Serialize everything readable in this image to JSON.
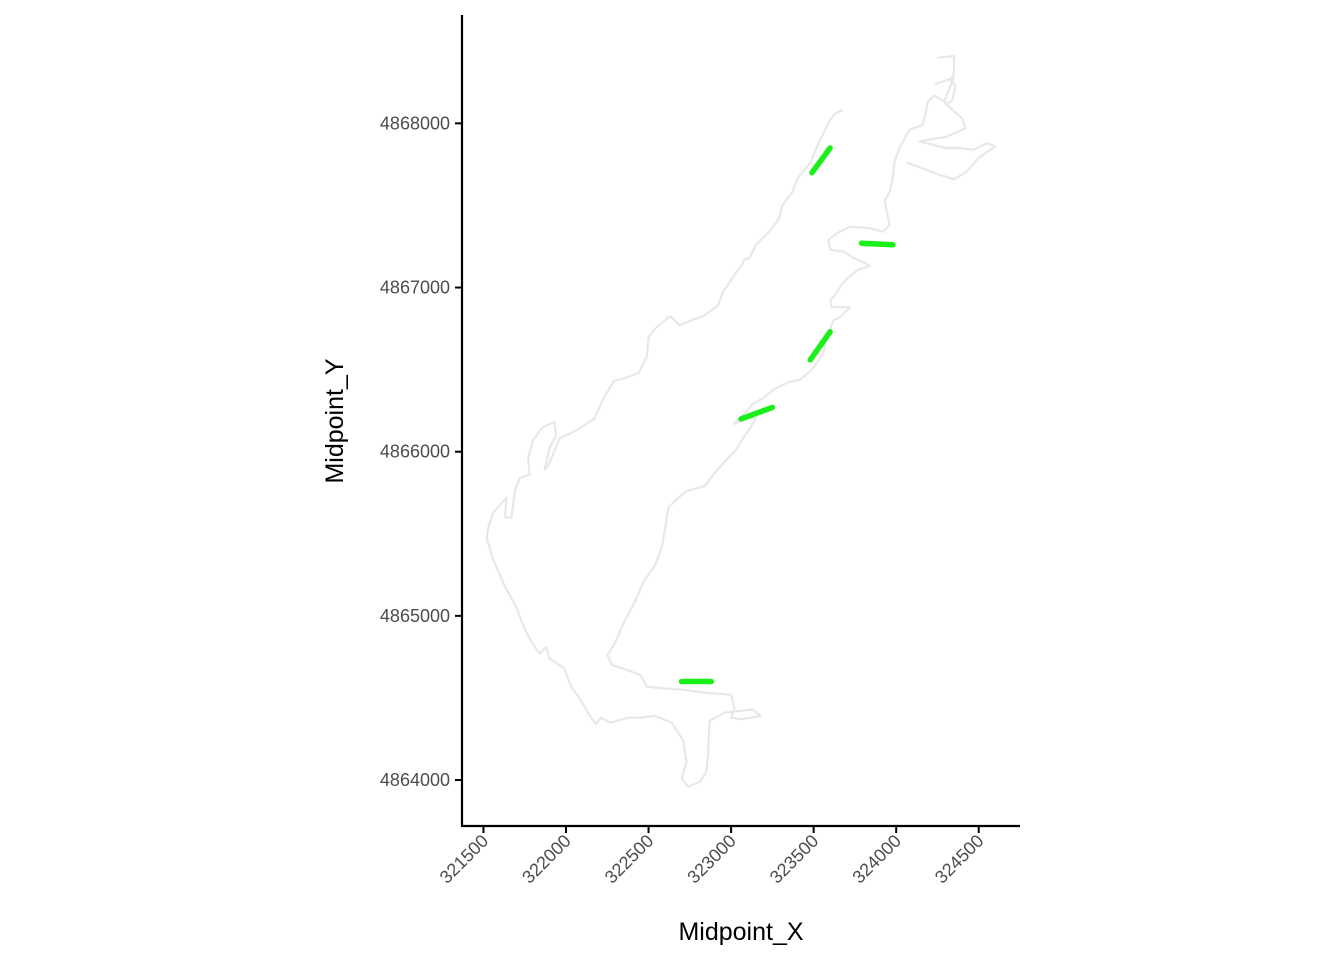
{
  "chart_data": {
    "type": "line",
    "title": "",
    "xlabel": "Midpoint_X",
    "ylabel": "Midpoint_Y",
    "xlim": [
      321370,
      324750
    ],
    "ylim": [
      4863720,
      4868660
    ],
    "xticks": [
      321500,
      322000,
      322500,
      323000,
      323500,
      324000,
      324500
    ],
    "xtick_labels": [
      "321500",
      "322000",
      "322500",
      "323000",
      "323500",
      "324000",
      "324500"
    ],
    "yticks": [
      4864000,
      4865000,
      4866000,
      4867000,
      4868000
    ],
    "ytick_labels": [
      "4864000",
      "4865000",
      "4866000",
      "4867000",
      "4868000"
    ],
    "grid": false,
    "legend": "none",
    "colors": {
      "outline": "#e8e8e8",
      "segments": "#19f019",
      "axis": "#000000"
    },
    "series": [
      {
        "values": [
          [
            322490,
            4864570
          ],
          [
            322570,
            4864560
          ],
          [
            322710,
            4864550
          ],
          [
            322860,
            4864530
          ],
          [
            323000,
            4864520
          ],
          [
            323020,
            4864440
          ],
          [
            323000,
            4864380
          ],
          [
            323060,
            4864370
          ],
          [
            323180,
            4864390
          ],
          [
            323130,
            4864430
          ],
          [
            322960,
            4864410
          ],
          [
            322870,
            4864360
          ],
          [
            322860,
            4864150
          ],
          [
            322850,
            4864050
          ],
          [
            322810,
            4863990
          ],
          [
            322740,
            4863960
          ],
          [
            322700,
            4864010
          ],
          [
            322730,
            4864110
          ],
          [
            322710,
            4864240
          ],
          [
            322640,
            4864350
          ],
          [
            322540,
            4864390
          ],
          [
            322450,
            4864380
          ],
          [
            322380,
            4864380
          ],
          [
            322270,
            4864350
          ],
          [
            322210,
            4864380
          ],
          [
            322180,
            4864340
          ],
          [
            322140,
            4864400
          ],
          [
            322080,
            4864500
          ],
          [
            322030,
            4864570
          ],
          [
            321990,
            4864680
          ],
          [
            321900,
            4864740
          ],
          [
            321880,
            4864810
          ],
          [
            321840,
            4864770
          ],
          [
            321780,
            4864860
          ],
          [
            321750,
            4864920
          ],
          [
            321700,
            4865050
          ],
          [
            321630,
            4865180
          ],
          [
            321560,
            4865340
          ],
          [
            321520,
            4865470
          ],
          [
            321530,
            4865540
          ],
          [
            321560,
            4865630
          ],
          [
            321640,
            4865720
          ],
          [
            321630,
            4865600
          ],
          [
            321670,
            4865600
          ],
          [
            321690,
            4865760
          ],
          [
            321720,
            4865840
          ],
          [
            321780,
            4865860
          ],
          [
            321770,
            4865960
          ],
          [
            321800,
            4866070
          ],
          [
            321860,
            4866150
          ],
          [
            321930,
            4866180
          ],
          [
            321940,
            4866100
          ],
          [
            321900,
            4866020
          ],
          [
            321870,
            4865890
          ],
          [
            321890,
            4865910
          ],
          [
            321920,
            4865980
          ],
          [
            321960,
            4866080
          ],
          [
            322060,
            4866130
          ],
          [
            322170,
            4866200
          ],
          [
            322230,
            4866330
          ],
          [
            322290,
            4866430
          ],
          [
            322360,
            4866450
          ],
          [
            322440,
            4866480
          ],
          [
            322490,
            4866580
          ],
          [
            322500,
            4866700
          ],
          [
            322550,
            4866760
          ],
          [
            322600,
            4866800
          ],
          [
            322620,
            4866820
          ],
          [
            322640,
            4866820
          ],
          [
            322690,
            4866770
          ],
          [
            322760,
            4866800
          ],
          [
            322840,
            4866830
          ],
          [
            322890,
            4866870
          ],
          [
            322920,
            4866890
          ],
          [
            322950,
            4866970
          ],
          [
            323030,
            4867090
          ],
          [
            323060,
            4867130
          ],
          [
            323080,
            4867170
          ],
          [
            323110,
            4867180
          ],
          [
            323150,
            4867260
          ],
          [
            323230,
            4867340
          ],
          [
            323290,
            4867420
          ],
          [
            323310,
            4867500
          ],
          [
            323370,
            4867580
          ],
          [
            323400,
            4867660
          ],
          [
            323440,
            4867710
          ],
          [
            323480,
            4867760
          ],
          [
            323530,
            4867880
          ],
          [
            323600,
            4868020
          ],
          [
            323630,
            4868060
          ],
          [
            323670,
            4868080
          ]
        ]
      },
      {
        "values": [
          [
            324250,
            4868400
          ],
          [
            324350,
            4868410
          ],
          [
            324350,
            4868310
          ],
          [
            324330,
            4868260
          ],
          [
            324360,
            4868230
          ],
          [
            324340,
            4868140
          ],
          [
            324310,
            4868120
          ],
          [
            324230,
            4868170
          ],
          [
            324190,
            4868130
          ],
          [
            324180,
            4868070
          ],
          [
            324160,
            4867990
          ],
          [
            324080,
            4867960
          ],
          [
            324020,
            4867850
          ],
          [
            323990,
            4867770
          ],
          [
            323980,
            4867670
          ],
          [
            323960,
            4867580
          ],
          [
            323930,
            4867530
          ],
          [
            323950,
            4867430
          ],
          [
            323960,
            4867380
          ],
          [
            323920,
            4867340
          ],
          [
            323850,
            4867360
          ],
          [
            323720,
            4867370
          ],
          [
            323640,
            4867330
          ],
          [
            323590,
            4867290
          ],
          [
            323600,
            4867230
          ],
          [
            323680,
            4867220
          ],
          [
            323740,
            4867180
          ],
          [
            323810,
            4867150
          ],
          [
            323840,
            4867130
          ],
          [
            323770,
            4867110
          ],
          [
            323710,
            4867060
          ],
          [
            323670,
            4867020
          ],
          [
            323640,
            4866970
          ],
          [
            323600,
            4866920
          ],
          [
            323610,
            4866880
          ],
          [
            323660,
            4866880
          ],
          [
            323720,
            4866880
          ],
          [
            323660,
            4866820
          ],
          [
            323620,
            4866800
          ],
          [
            323580,
            4866700
          ],
          [
            323560,
            4866600
          ],
          [
            323490,
            4866500
          ],
          [
            323420,
            4866440
          ],
          [
            323340,
            4866420
          ],
          [
            323260,
            4866380
          ],
          [
            323200,
            4866330
          ],
          [
            323130,
            4866290
          ],
          [
            323090,
            4866240
          ],
          [
            323050,
            4866200
          ],
          [
            323020,
            4866170
          ],
          [
            323090,
            4866200
          ],
          [
            323150,
            4866210
          ],
          [
            323120,
            4866150
          ],
          [
            323070,
            4866080
          ],
          [
            323030,
            4866010
          ],
          [
            322980,
            4865960
          ],
          [
            322900,
            4865870
          ],
          [
            322840,
            4865790
          ],
          [
            322730,
            4865760
          ],
          [
            322680,
            4865720
          ],
          [
            322620,
            4865660
          ],
          [
            322600,
            4865530
          ],
          [
            322580,
            4865420
          ],
          [
            322540,
            4865310
          ],
          [
            322470,
            4865210
          ],
          [
            322420,
            4865090
          ],
          [
            322350,
            4864960
          ],
          [
            322300,
            4864840
          ],
          [
            322250,
            4864760
          ],
          [
            322280,
            4864700
          ],
          [
            322370,
            4864670
          ],
          [
            322450,
            4864640
          ],
          [
            322490,
            4864570
          ]
        ]
      },
      {
        "values": [
          [
            324240,
            4868240
          ],
          [
            324350,
            4868280
          ],
          [
            324290,
            4868130
          ],
          [
            324400,
            4868030
          ],
          [
            324420,
            4867970
          ],
          [
            324310,
            4867920
          ],
          [
            324140,
            4867890
          ],
          [
            324220,
            4867870
          ],
          [
            324300,
            4867850
          ],
          [
            324380,
            4867850
          ],
          [
            324470,
            4867840
          ],
          [
            324550,
            4867880
          ],
          [
            324600,
            4867860
          ],
          [
            324500,
            4867790
          ],
          [
            324420,
            4867700
          ],
          [
            324350,
            4867660
          ],
          [
            324250,
            4867690
          ],
          [
            324150,
            4867730
          ],
          [
            324070,
            4867760
          ]
        ]
      }
    ],
    "segments": [
      [
        [
          323490,
          4867700
        ],
        [
          323600,
          4867850
        ]
      ],
      [
        [
          323790,
          4867270
        ],
        [
          323980,
          4867260
        ]
      ],
      [
        [
          323480,
          4866560
        ],
        [
          323600,
          4866730
        ]
      ],
      [
        [
          323060,
          4866200
        ],
        [
          323250,
          4866270
        ]
      ],
      [
        [
          322700,
          4864600
        ],
        [
          322880,
          4864600
        ]
      ]
    ]
  }
}
